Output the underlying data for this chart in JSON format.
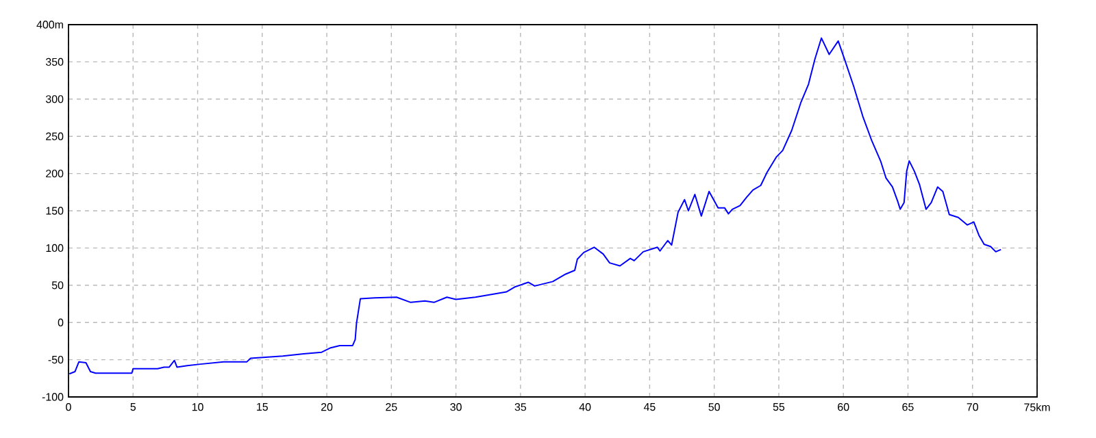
{
  "chart_data": {
    "type": "line",
    "xlim": [
      0,
      75
    ],
    "ylim": [
      -100,
      400
    ],
    "xticks": [
      0,
      5,
      10,
      15,
      20,
      25,
      30,
      35,
      40,
      45,
      50,
      55,
      60,
      65,
      70,
      {
        "value": 75,
        "label": "75km"
      }
    ],
    "yticks": [
      -100,
      -50,
      0,
      50,
      100,
      150,
      200,
      250,
      300,
      350,
      {
        "value": 400,
        "label": "400m"
      }
    ],
    "grid": true,
    "marker": "none",
    "line_style": "solid",
    "series": [
      {
        "color": "#0000ff",
        "x": [
          0.07,
          0.5,
          0.8,
          1.35,
          1.7,
          2.1,
          4.1,
          4.9,
          5.0,
          6.9,
          7.4,
          7.8,
          8.2,
          8.4,
          9.2,
          10.2,
          12.0,
          13.8,
          14.1,
          16.6,
          18.2,
          19.6,
          20.3,
          21.0,
          22.0,
          22.2,
          22.3,
          22.6,
          23.7,
          25.4,
          26.5,
          27.6,
          28.3,
          29.3,
          30.0,
          31.5,
          32.9,
          33.9,
          34.6,
          35.6,
          36.1,
          37.5,
          38.5,
          39.2,
          39.4,
          39.9,
          40.7,
          41.4,
          41.9,
          42.7,
          43.5,
          43.8,
          44.5,
          45.6,
          45.8,
          46.4,
          46.7,
          47.2,
          47.7,
          48.0,
          48.5,
          49.0,
          49.6,
          50.3,
          50.8,
          51.1,
          51.4,
          52.0,
          52.5,
          53.0,
          53.6,
          54.1,
          54.8,
          55.3,
          56.0,
          56.7,
          57.3,
          57.8,
          58.3,
          58.9,
          59.6,
          60.1,
          60.8,
          61.5,
          62.2,
          62.9,
          63.3,
          63.8,
          64.2,
          64.4,
          64.7,
          64.9,
          65.1,
          65.5,
          65.9,
          66.4,
          66.8,
          67.3,
          67.7,
          68.2,
          68.9,
          69.6,
          70.1,
          70.5,
          70.9,
          71.4,
          71.8,
          72.2
        ],
        "values": [
          -69,
          -66,
          -53,
          -54,
          -66,
          -68,
          -68,
          -68,
          -62,
          -62,
          -60,
          -60,
          -51,
          -60,
          -58,
          -56,
          -53,
          -53,
          -48,
          -45,
          -42,
          -40,
          -34,
          -31,
          -31,
          -23,
          -1,
          32,
          33,
          34,
          27,
          29,
          27,
          34,
          31,
          34,
          38,
          41,
          48,
          54,
          49,
          55,
          65,
          70,
          85,
          94,
          101,
          92,
          80,
          76,
          86,
          83,
          95,
          101,
          96,
          110,
          104,
          148,
          165,
          150,
          172,
          143,
          176,
          154,
          154,
          146,
          152,
          157,
          168,
          178,
          184,
          202,
          222,
          231,
          258,
          295,
          320,
          354,
          382,
          360,
          378,
          353,
          317,
          277,
          244,
          216,
          194,
          182,
          163,
          152,
          161,
          203,
          217,
          203,
          185,
          152,
          161,
          182,
          176,
          145,
          141,
          131,
          135,
          117,
          105,
          102,
          95,
          98
        ]
      }
    ]
  }
}
